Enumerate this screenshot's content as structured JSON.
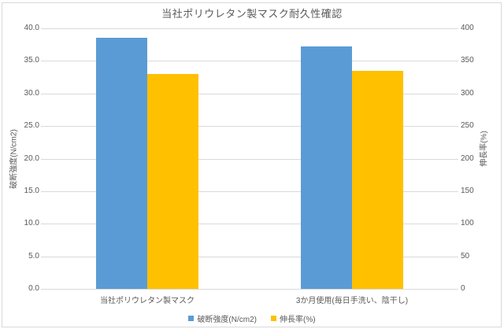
{
  "window": {
    "background": "#FFFFFF",
    "border_color": "#D9D9D9",
    "text_color": "#595959"
  },
  "chart_data": {
    "type": "bar",
    "title": "当社ポリウレタン製マスク耐久性確認",
    "categories": [
      "当社ポリウレタン製マスク",
      "3か月使用(毎日手洗い、陰干し)"
    ],
    "series": [
      {
        "name": "破断強度(N/cm2)",
        "axis": "left",
        "color": "#5B9BD5",
        "values": [
          38.5,
          37.2
        ]
      },
      {
        "name": "伸長率(%)",
        "axis": "right",
        "color": "#FFC000",
        "values": [
          330,
          335
        ]
      }
    ],
    "left_axis": {
      "label": "破断強度(N/cm2)",
      "range": [
        0,
        40
      ],
      "tick_step": 5,
      "tick_format": "one-decimal"
    },
    "right_axis": {
      "label": "伸長率(%)",
      "range": [
        0,
        400
      ],
      "tick_step": 50,
      "tick_format": "integer"
    },
    "grid": true,
    "gridline_color": "#D9D9D9",
    "legend_position": "bottom"
  }
}
